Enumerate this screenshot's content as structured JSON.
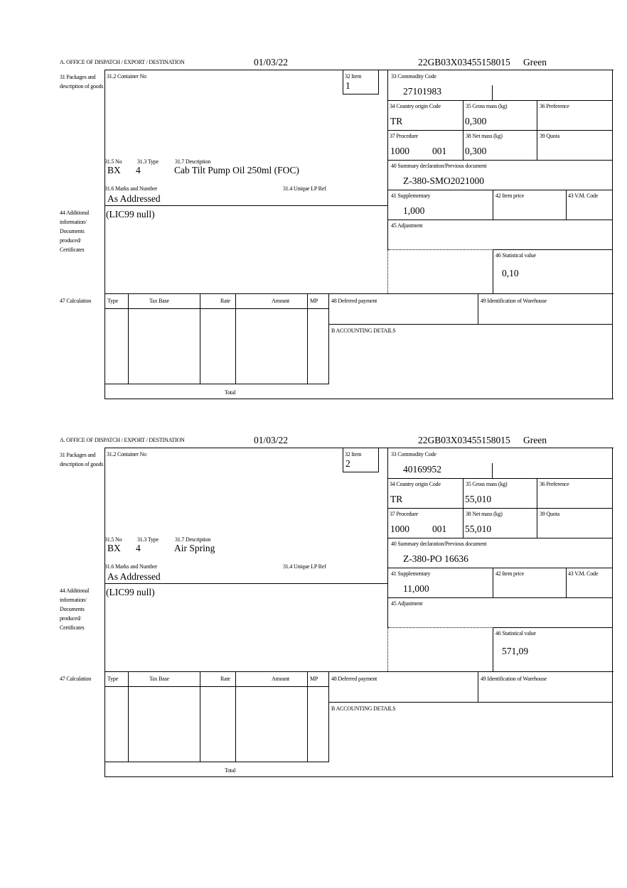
{
  "forms": [
    {
      "header": {
        "office_label": "A. OFFICE OF DISPATCH / EXPORT / DESTINATION",
        "date": "01/03/22",
        "reference": "22GB03X03455158015",
        "lane": "Green"
      },
      "side_labels": {
        "packages": "31 Packages and description of goods",
        "additional": "44 Additional information/ Documents produced/ Certificates",
        "calculation": "47 Calculation"
      },
      "labels": {
        "container": "31.2 Container No",
        "item": "32 Item",
        "no": "31.5 No",
        "type": "31.3 Type",
        "description": "31.7 Description",
        "marks": "31.6 Marks and Number",
        "unique_lp": "31.4 Unique LP Ref",
        "commodity": "33 Commodity Code",
        "country": "34 Country origin Code",
        "gross": "35 Gross mass (kg)",
        "preference": "36 Preference",
        "procedure": "37 Procedure",
        "net": "38 Net mass (kg)",
        "quota": "39 Quota",
        "summary": "40 Summary declaration/Previous document",
        "supplementary": "41 Supplementary",
        "item_price": "42 Item price",
        "vm_code": "43 V.M. Code",
        "adjustment": "45 Adjustment",
        "statistical": "46 Statistical value",
        "deferred": "48 Deferred payment",
        "warehouse": "49 Identification of Warehouse",
        "accounting": "B ACCOUNTING DETAILS"
      },
      "calc_headers": {
        "type": "Type",
        "tax_base": "Tax Base",
        "rate": "Rate",
        "amount": "Amount",
        "mp": "MP",
        "total": "Total"
      },
      "values": {
        "item": "1",
        "no": "BX",
        "type": "4",
        "description": "Cab Tilt Pump Oil 250ml (FOC)",
        "marks": "As Addressed",
        "commodity": "27101983",
        "country": "TR",
        "gross": "0,300",
        "procedure": "1000",
        "procedure_add": "001",
        "net": "0,300",
        "summary": "Z-380-SMO2021000",
        "supplementary": "1,000",
        "statistical": "0,10",
        "additional": "(LIC99 null)"
      }
    },
    {
      "header": {
        "office_label": "A. OFFICE OF DISPATCH / EXPORT / DESTINATION",
        "date": "01/03/22",
        "reference": "22GB03X03455158015",
        "lane": "Green"
      },
      "side_labels": {
        "packages": "31 Packages and description of goods",
        "additional": "44 Additional information/ Documents produced/ Certificates",
        "calculation": "47 Calculation"
      },
      "labels": {
        "container": "31.2 Container No",
        "item": "32 Item",
        "no": "31.5 No",
        "type": "31.3 Type",
        "description": "31.7 Description",
        "marks": "31.6 Marks and Number",
        "unique_lp": "31.4 Unique LP Ref",
        "commodity": "33 Commodity Code",
        "country": "34 Country origin Code",
        "gross": "35 Gross mass (kg)",
        "preference": "36 Preference",
        "procedure": "37 Procedure",
        "net": "38 Net mass (kg)",
        "quota": "39 Quota",
        "summary": "40 Summary declaration/Previous document",
        "supplementary": "41 Supplementary",
        "item_price": "42 Item price",
        "vm_code": "43 V.M. Code",
        "adjustment": "45 Adjustment",
        "statistical": "46 Statistical value",
        "deferred": "48 Deferred payment",
        "warehouse": "49 Identification of Warehouse",
        "accounting": "B ACCOUNTING DETAILS"
      },
      "calc_headers": {
        "type": "Type",
        "tax_base": "Tax Base",
        "rate": "Rate",
        "amount": "Amount",
        "mp": "MP",
        "total": "Total"
      },
      "values": {
        "item": "2",
        "no": "BX",
        "type": "4",
        "description": "Air Spring",
        "marks": "As Addressed",
        "commodity": "40169952",
        "country": "TR",
        "gross": "55,010",
        "procedure": "1000",
        "procedure_add": "001",
        "net": "55,010",
        "summary": "Z-380-PO 16636",
        "supplementary": "11,000",
        "statistical": "571,09",
        "additional": "(LIC99 null)"
      }
    }
  ]
}
